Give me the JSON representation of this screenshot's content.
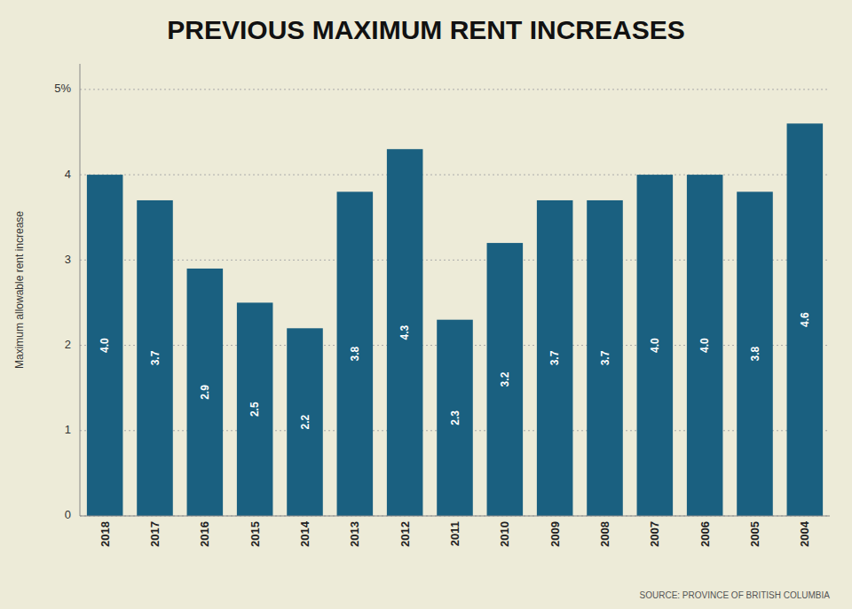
{
  "chart_data": {
    "type": "bar",
    "title": "PREVIOUS MAXIMUM RENT INCREASES",
    "ylabel": "Maximum allowable rent increase",
    "source": "SOURCE: PROVINCE OF BRITISH COLUMBIA",
    "categories": [
      "2018",
      "2017",
      "2016",
      "2015",
      "2014",
      "2013",
      "2012",
      "2011",
      "2010",
      "2009",
      "2008",
      "2007",
      "2006",
      "2005",
      "2004"
    ],
    "values": [
      4.0,
      3.7,
      2.9,
      2.5,
      2.2,
      3.8,
      4.3,
      2.3,
      3.2,
      3.7,
      3.7,
      4.0,
      4.0,
      3.8,
      4.6
    ],
    "value_labels": [
      "4.0",
      "3.7",
      "2.9",
      "2.5",
      "2.2",
      "3.8",
      "4.3",
      "2.3",
      "3.2",
      "3.7",
      "3.7",
      "4.0",
      "4.0",
      "3.8",
      "4.6"
    ],
    "data_labels": true,
    "color": "#1a6080",
    "ylim": [
      0,
      5.3
    ],
    "yticks": [
      0,
      1,
      2,
      3,
      4,
      {
        "value": 5,
        "label": "5%"
      }
    ],
    "grid": true
  }
}
